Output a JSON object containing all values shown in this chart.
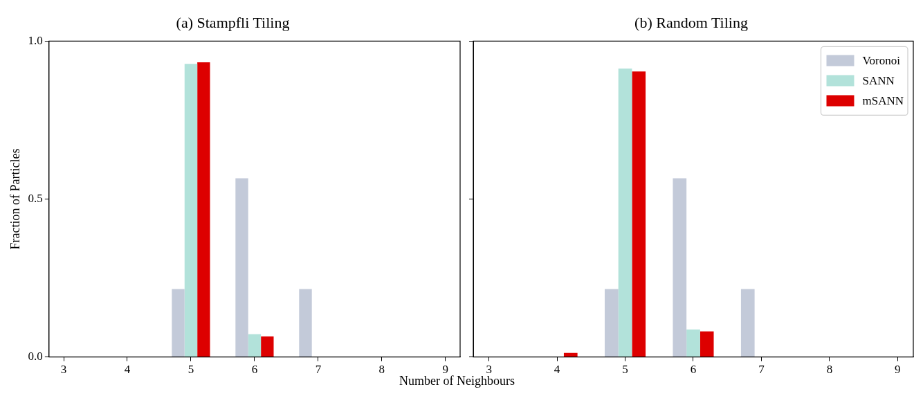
{
  "chart_data": [
    {
      "type": "bar",
      "title": "(a) Stampfli Tiling",
      "xlabel": "Number of Neighbours",
      "ylabel": "Fraction of Particles",
      "x": [
        3,
        4,
        5,
        6,
        7,
        8,
        9
      ],
      "series": [
        {
          "color": "#c3cad9",
          "values": [
            0,
            0,
            0.215,
            0.566,
            0.215,
            0,
            0
          ]
        },
        {
          "color": "#b2e2da",
          "values": [
            0,
            0,
            0.928,
            0.072,
            0,
            0,
            0
          ]
        },
        {
          "color": "#dd0000",
          "values": [
            0,
            0,
            0.933,
            0.065,
            0,
            0,
            0
          ]
        }
      ],
      "xlim": [
        2.77,
        9.23
      ],
      "xticks": [
        3,
        4,
        5,
        6,
        7,
        8,
        9
      ],
      "ylim": [
        0,
        1
      ],
      "yticks": [
        {
          "value": 0,
          "label": "0.0"
        },
        {
          "value": 0.5,
          "label": "0.5"
        },
        {
          "value": 1,
          "label": "1.0"
        }
      ],
      "grid": false,
      "legend": false
    },
    {
      "type": "bar",
      "title": "(b) Random Tiling",
      "x": [
        3,
        4,
        5,
        6,
        7,
        8,
        9
      ],
      "series": [
        {
          "name": "Voronoi",
          "color": "#c3cad9",
          "values": [
            0,
            0,
            0.215,
            0.566,
            0.215,
            0,
            0
          ]
        },
        {
          "name": "SANN",
          "color": "#b2e2da",
          "values": [
            0,
            0,
            0.913,
            0.087,
            0,
            0,
            0
          ]
        },
        {
          "name": "mSANN",
          "color": "#dd0000",
          "values": [
            0,
            0.013,
            0.904,
            0.081,
            0,
            0,
            0
          ]
        }
      ],
      "xlim": [
        2.77,
        9.23
      ],
      "xticks": [
        3,
        4,
        5,
        6,
        7,
        8,
        9
      ],
      "ylim": [
        0,
        1
      ],
      "yticks": [
        {
          "value": 0,
          "label": null
        },
        {
          "value": 0.5,
          "label": null
        },
        {
          "value": 1,
          "label": null
        }
      ],
      "grid": false,
      "legend": "top right",
      "tick_labels": "x"
    }
  ]
}
